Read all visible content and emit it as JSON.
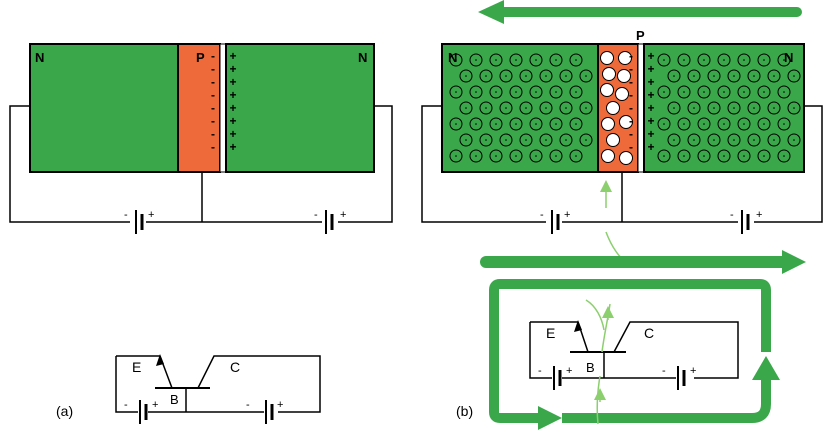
{
  "labels": {
    "n": "N",
    "p": "P",
    "minus": "-",
    "plus": "+",
    "emitter": "E",
    "base": "B",
    "collector": "C"
  },
  "captions": {
    "a": "(a)",
    "b": "(b)"
  },
  "colors": {
    "n_region": "#3aa84a",
    "p_region": "#ef6a3a",
    "flow_arrow": "#3aa84a",
    "electron_arrow": "#8ccf6e",
    "outline": "#000000"
  }
}
